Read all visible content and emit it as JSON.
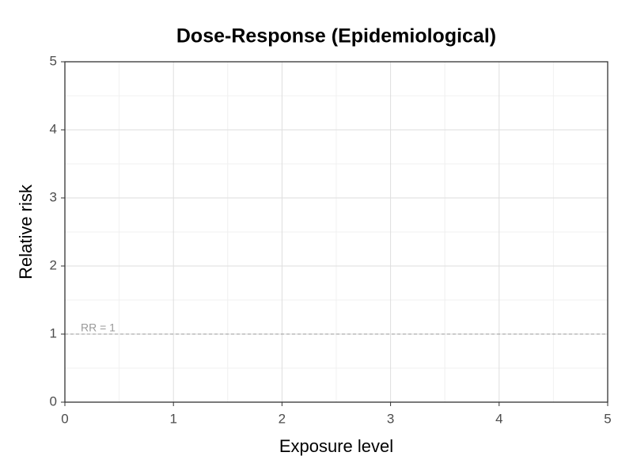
{
  "chart_data": {
    "type": "line",
    "title": "Dose-Response (Epidemiological)",
    "x_label": "Exposure level",
    "y_label": "Relative risk",
    "xlim": [
      0,
      5
    ],
    "ylim": [
      0,
      5
    ],
    "xticks": [
      0,
      1,
      2,
      3,
      4,
      5
    ],
    "yticks": [
      0,
      1,
      2,
      3,
      4,
      5
    ],
    "grid": true,
    "reference_line": {
      "y": 1,
      "label": "RR = 1",
      "color": "#999999"
    }
  }
}
